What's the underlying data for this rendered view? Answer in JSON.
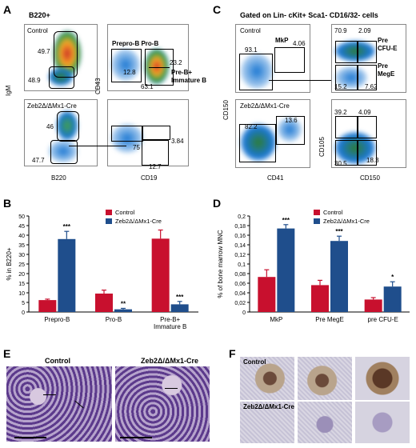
{
  "panels": {
    "A": {
      "letter": "A",
      "title": "B220+",
      "top_left": {
        "label": "Control",
        "y_axis": "IgM",
        "gates": [
          "49.7",
          "48.9"
        ]
      },
      "bottom_left": {
        "label": "Zeb2Δ/ΔMx1-Cre",
        "gates": [
          "46",
          "47.7"
        ],
        "x_axis": "B220"
      },
      "top_right": {
        "y_axis": "CD43",
        "header": "Prepro-B Pro-B",
        "gates": [
          "12.8",
          "23.2",
          "63.1"
        ],
        "annotation": "Pre-B+\nImmature B"
      },
      "bottom_right": {
        "gates": [
          "75",
          "3.84",
          "12.7"
        ],
        "x_axis": "CD19"
      }
    },
    "C": {
      "letter": "C",
      "title": "Gated on Lin- cKit+ Sca1- CD16/32- cells",
      "top_left": {
        "label": "Control",
        "gates": [
          "93.1",
          "MkP",
          "4.06"
        ],
        "y_axis": "CD150"
      },
      "bottom_left": {
        "label": "Zeb2Δ/ΔMx1-Cre",
        "gates": [
          "82.2",
          "13.6"
        ],
        "x_axis": "CD41"
      },
      "top_right": {
        "gates": [
          "70.9",
          "2.09",
          "15.2",
          "7.62"
        ],
        "labels": [
          "Pre\nCFU-E",
          "Pre\nMegE"
        ],
        "y_axis": "CD105"
      },
      "bottom_right": {
        "gates": [
          "39.2",
          "4.09",
          "30.5",
          "18.3"
        ],
        "x_axis": "CD150"
      }
    },
    "B": {
      "letter": "B"
    },
    "D": {
      "letter": "D"
    },
    "E": {
      "letter": "E",
      "labels": [
        "Control",
        "Zeb2Δ/ΔMx1-Cre"
      ]
    },
    "F": {
      "letter": "F",
      "labels": [
        "Control",
        "Zeb2Δ/ΔMx1-Cre"
      ]
    }
  },
  "colors": {
    "control": "#c8102e",
    "zeb2": "#1f4e8c"
  },
  "chart_data": [
    {
      "type": "bar",
      "panel": "B",
      "ylabel": "% in B220+",
      "ylim": [
        0,
        50
      ],
      "yticks": [
        "0",
        "5",
        "10",
        "15",
        "20",
        "25",
        "30",
        "35",
        "40",
        "45",
        "50"
      ],
      "categories": [
        "Prepro-B",
        "Pro-B",
        "Pre-B+\nImmature B"
      ],
      "series": [
        {
          "name": "Control",
          "values": [
            6.2,
            9.6,
            38.2
          ],
          "errors": [
            0.5,
            1.8,
            4.5
          ]
        },
        {
          "name": "Zeb2Δ/ΔMx1-Cre",
          "values": [
            38.0,
            1.4,
            4.0
          ],
          "errors": [
            4.0,
            0.5,
            1.5
          ]
        }
      ],
      "significance": [
        [
          "",
          "***"
        ],
        [
          "",
          "**"
        ],
        [
          "",
          "***"
        ]
      ]
    },
    {
      "type": "bar",
      "panel": "D",
      "ylabel": "% of bone marrow MNC",
      "ylim": [
        0,
        0.2
      ],
      "yticks": [
        "0",
        "0,02",
        "0,04",
        "0,06",
        "0,08",
        "0,1",
        "0,12",
        "0,14",
        "0,16",
        "0,18",
        "0,2"
      ],
      "categories": [
        "MkP",
        "Pre MegE",
        "pre CFU-E"
      ],
      "series": [
        {
          "name": "Control",
          "values": [
            0.073,
            0.056,
            0.026
          ],
          "errors": [
            0.015,
            0.01,
            0.004
          ]
        },
        {
          "name": "Zeb2Δ/ΔMx1-Cre",
          "values": [
            0.174,
            0.148,
            0.053
          ],
          "errors": [
            0.008,
            0.01,
            0.01
          ]
        }
      ],
      "significance": [
        [
          "",
          "***"
        ],
        [
          "",
          "***"
        ],
        [
          "",
          "*"
        ]
      ]
    }
  ]
}
